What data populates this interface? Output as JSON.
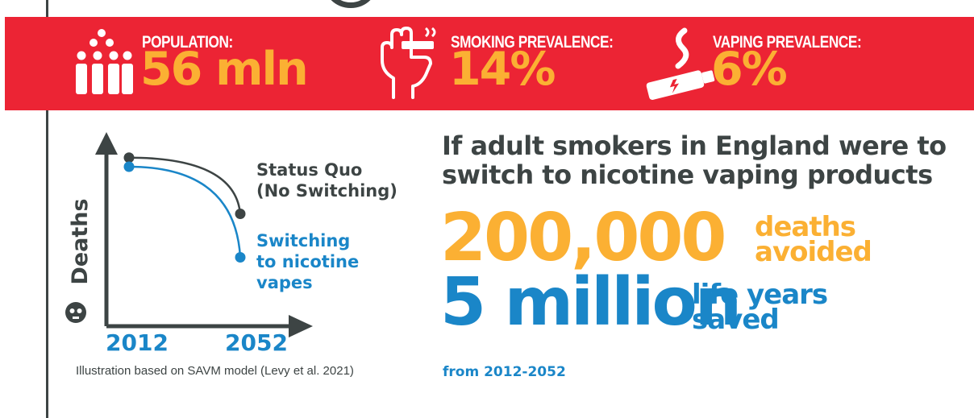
{
  "banner": {
    "population": {
      "label": "POPULATION:",
      "value": "56 mln"
    },
    "smoking": {
      "label": "SMOKING PREVALENCE:",
      "value": "14%"
    },
    "vaping": {
      "label": "VAPING PREVALENCE:",
      "value": "6%"
    }
  },
  "chart_data": {
    "type": "line",
    "x": [
      2012,
      2052
    ],
    "tick_labels": [
      "2012",
      "2052"
    ],
    "ylabel": "Deaths",
    "series": [
      {
        "name": "Status Quo (No Switching)",
        "label_lines": [
          "Status Quo",
          "(No Switching)"
        ],
        "color": "#3d4444",
        "values": [
          0.93,
          0.62
        ]
      },
      {
        "name": "Switching to nicotine vapes",
        "label_lines": [
          "Switching",
          "to nicotine",
          "vapes"
        ],
        "color": "#1a86c8",
        "values": [
          0.88,
          0.38
        ]
      }
    ]
  },
  "caption": "Illustration based on SAVM model (Levy et al. 2021)",
  "headline": "If adult smokers in England were to switch to nicotine vaping products",
  "stats": {
    "deaths": {
      "number": "200,000",
      "label_line1": "deaths",
      "label_line2": "avoided"
    },
    "years": {
      "number": "5 million",
      "label_line1": "life years",
      "label_line2": "saved"
    }
  },
  "period": "from 2012-2052",
  "colors": {
    "red": "#ec2434",
    "orange": "#fbb033",
    "blue": "#1a86c8",
    "dark": "#3d4444"
  }
}
